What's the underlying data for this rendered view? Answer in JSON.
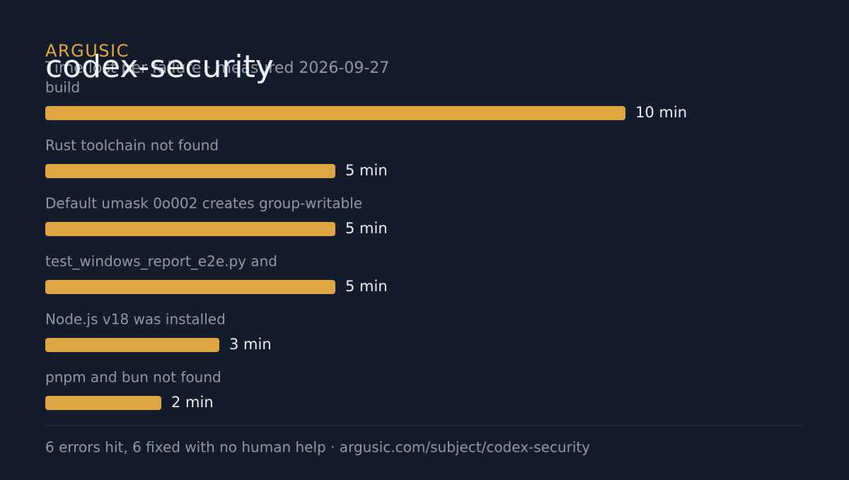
{
  "chart_data": {
    "type": "bar",
    "orientation": "horizontal",
    "brand": "ARGUSIC",
    "title": "codex-security",
    "subtitle": "Time lost per failure · measured 2026-09-27",
    "categories": [
      "build",
      "Rust toolchain not found",
      "Default umask 0o002 creates group-writable",
      "test_windows_report_e2e.py  and",
      "Node.js v18 was installed",
      "pnpm and bun not found"
    ],
    "values": [
      10,
      5,
      5,
      5,
      3,
      2
    ],
    "value_labels": [
      "10 min",
      "5 min",
      "5 min",
      "5 min",
      "3 min",
      "2 min"
    ],
    "color": "#dea543",
    "xlim": [
      0,
      10
    ],
    "footer": "6 errors hit, 6 fixed with no human help · argusic.com/subject/codex-security"
  }
}
